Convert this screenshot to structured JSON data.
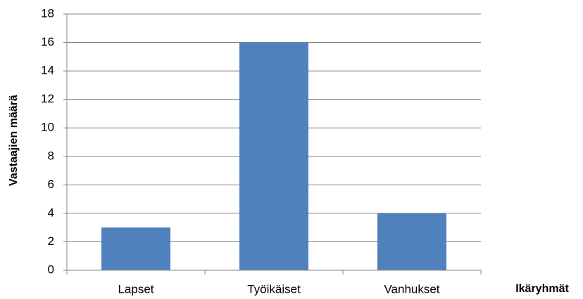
{
  "chart_data": {
    "type": "bar",
    "categories": [
      "Lapset",
      "Työikäiset",
      "Vanhukset"
    ],
    "values": [
      3,
      16,
      4
    ],
    "color": "#4f81bd",
    "ylim": [
      0,
      18
    ],
    "yticks": [
      0,
      2,
      4,
      6,
      8,
      10,
      12,
      14,
      16,
      18
    ],
    "grid": true,
    "y_label": "Vastaajien määrä",
    "x_label": "Ikäryhmät"
  }
}
